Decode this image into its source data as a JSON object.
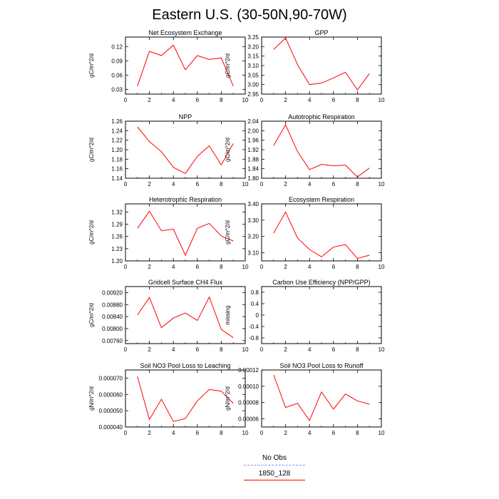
{
  "title": "Eastern U.S. (30-50N,90-70W)",
  "legend": [
    {
      "label": "No Obs",
      "color": "#8888ff",
      "dash": true
    },
    {
      "label": "1850_128",
      "color": "#ff0000",
      "dash": false
    }
  ],
  "chart_data": [
    {
      "type": "line",
      "title": "Net Ecosystem Exchange",
      "ylabel": "gC/m^2/d",
      "xlim": [
        0,
        10
      ],
      "ylim": [
        0.02,
        0.14
      ],
      "xticks": [
        0,
        2,
        4,
        6,
        8,
        10
      ],
      "xticklabels": [
        "0",
        "2",
        "4",
        "6",
        "8",
        "10"
      ],
      "yticks": [
        0.03,
        0.06,
        0.09,
        0.12
      ],
      "yticklabels": [
        "0.03",
        "0.06",
        "0.09",
        "0.12"
      ],
      "series": [
        {
          "name": "1850_128",
          "x": [
            1,
            2,
            3,
            4,
            5,
            6,
            7,
            8,
            9
          ],
          "values": [
            0.037,
            0.11,
            0.101,
            0.123,
            0.071,
            0.101,
            0.093,
            0.096,
            0.037
          ]
        }
      ]
    },
    {
      "type": "line",
      "title": "GPP",
      "ylabel": "gC/m^2/d",
      "xlim": [
        0,
        10
      ],
      "ylim": [
        2.95,
        3.25
      ],
      "xticks": [
        0,
        2,
        4,
        6,
        8,
        10
      ],
      "xticklabels": [
        "0",
        "2",
        "4",
        "6",
        "8",
        "10"
      ],
      "yticks": [
        2.95,
        3.0,
        3.05,
        3.1,
        3.15,
        3.2,
        3.25
      ],
      "yticklabels": [
        "2.95",
        "3.00",
        "3.05",
        "3.10",
        "3.15",
        "3.20",
        "3.25"
      ],
      "series": [
        {
          "name": "1850_128",
          "x": [
            1,
            2,
            3,
            4,
            5,
            6,
            7,
            8,
            9
          ],
          "values": [
            3.185,
            3.245,
            3.105,
            3.0,
            3.008,
            3.035,
            3.065,
            2.972,
            3.058
          ]
        }
      ]
    },
    {
      "type": "line",
      "title": "NPP",
      "ylabel": "gC/m^2/d",
      "xlim": [
        0,
        10
      ],
      "ylim": [
        1.14,
        1.26
      ],
      "xticks": [
        0,
        2,
        4,
        6,
        8,
        10
      ],
      "xticklabels": [
        "0",
        "2",
        "4",
        "6",
        "8",
        "10"
      ],
      "yticks": [
        1.14,
        1.16,
        1.18,
        1.2,
        1.22,
        1.24,
        1.26
      ],
      "yticklabels": [
        "1.14",
        "1.16",
        "1.18",
        "1.20",
        "1.22",
        "1.24",
        "1.26"
      ],
      "series": [
        {
          "name": "1850_128",
          "x": [
            1,
            2,
            3,
            4,
            5,
            6,
            7,
            8,
            9
          ],
          "values": [
            1.248,
            1.217,
            1.196,
            1.163,
            1.15,
            1.186,
            1.208,
            1.168,
            1.213
          ]
        }
      ]
    },
    {
      "type": "line",
      "title": "Autotrophic Respiration",
      "ylabel": "gC/m^2/d",
      "xlim": [
        0,
        10
      ],
      "ylim": [
        1.8,
        2.04
      ],
      "xticks": [
        0,
        2,
        4,
        6,
        8,
        10
      ],
      "xticklabels": [
        "0",
        "2",
        "4",
        "6",
        "8",
        "10"
      ],
      "yticks": [
        1.8,
        1.84,
        1.88,
        1.92,
        1.96,
        2.0,
        2.04
      ],
      "yticklabels": [
        "1.80",
        "1.84",
        "1.88",
        "1.92",
        "1.96",
        "2.00",
        "2.04"
      ],
      "series": [
        {
          "name": "1850_128",
          "x": [
            1,
            2,
            3,
            4,
            5,
            6,
            7,
            8,
            9
          ],
          "values": [
            1.937,
            2.025,
            1.912,
            1.836,
            1.858,
            1.852,
            1.855,
            1.805,
            1.843
          ]
        }
      ]
    },
    {
      "type": "line",
      "title": "Heterotrophic Respiration",
      "ylabel": "gC/m^2/d",
      "xlim": [
        0,
        10
      ],
      "ylim": [
        1.2,
        1.34
      ],
      "xticks": [
        0,
        2,
        4,
        6,
        8,
        10
      ],
      "xticklabels": [
        "0",
        "2",
        "4",
        "6",
        "8",
        "10"
      ],
      "yticks": [
        1.2,
        1.23,
        1.26,
        1.29,
        1.32
      ],
      "yticklabels": [
        "1.20",
        "1.23",
        "1.26",
        "1.29",
        "1.32"
      ],
      "series": [
        {
          "name": "1850_128",
          "x": [
            1,
            2,
            3,
            4,
            5,
            6,
            7,
            8,
            9
          ],
          "values": [
            1.28,
            1.322,
            1.274,
            1.278,
            1.214,
            1.28,
            1.292,
            1.261,
            1.249
          ]
        }
      ]
    },
    {
      "type": "line",
      "title": "Ecosystem Respiration",
      "ylabel": "gC/m^2/d",
      "xlim": [
        0,
        10
      ],
      "ylim": [
        3.05,
        3.4
      ],
      "xticks": [
        0,
        2,
        4,
        6,
        8,
        10
      ],
      "xticklabels": [
        "0",
        "2",
        "4",
        "6",
        "8",
        "10"
      ],
      "yticks": [
        3.1,
        3.2,
        3.3,
        3.4
      ],
      "yticklabels": [
        "3.10",
        "3.20",
        "3.30",
        "3.40"
      ],
      "series": [
        {
          "name": "1850_128",
          "x": [
            1,
            2,
            3,
            4,
            5,
            6,
            7,
            8,
            9
          ],
          "values": [
            3.22,
            3.35,
            3.19,
            3.12,
            3.075,
            3.135,
            3.15,
            3.065,
            3.085
          ]
        }
      ]
    },
    {
      "type": "line",
      "title": "Gridcell Surface CH4 Flux",
      "ylabel": "gC/m^2/d",
      "xlim": [
        0,
        10
      ],
      "ylim": [
        0.0075,
        0.0094
      ],
      "xticks": [
        0,
        2,
        4,
        6,
        8,
        10
      ],
      "xticklabels": [
        "0",
        "2",
        "4",
        "6",
        "8",
        "10"
      ],
      "yticks": [
        0.0076,
        0.008,
        0.0084,
        0.0088,
        0.0092
      ],
      "yticklabels": [
        "0.00760",
        "0.00800",
        "0.00840",
        "0.00880",
        "0.00920"
      ],
      "series": [
        {
          "name": "1850_128",
          "x": [
            1,
            2,
            3,
            4,
            5,
            6,
            7,
            8,
            9
          ],
          "values": [
            0.00845,
            0.00904,
            0.00803,
            0.00835,
            0.00852,
            0.00827,
            0.00905,
            0.00797,
            0.0077
          ]
        }
      ]
    },
    {
      "type": "line",
      "title": "Carbon Use Efficiency (NPP/GPP)",
      "ylabel": "missing",
      "xlim": [
        0,
        10
      ],
      "ylim": [
        -1.0,
        1.0
      ],
      "xticks": [
        0,
        2,
        4,
        6,
        8,
        10
      ],
      "xticklabels": [
        "0",
        "2",
        "4",
        "6",
        "8",
        "10"
      ],
      "yticks": [
        -0.8,
        -0.4,
        0.0,
        0.4,
        0.8
      ],
      "yticklabels": [
        "-0.8",
        "-0.4",
        "0",
        "0.4",
        "0.8"
      ],
      "series": []
    },
    {
      "type": "line",
      "title": "Soil NO3 Pool Loss to Leaching",
      "ylabel": "gN/m^2/d",
      "xlim": [
        0,
        10
      ],
      "ylim": [
        4e-05,
        7.5e-05
      ],
      "xticks": [
        0,
        2,
        4,
        6,
        8,
        10
      ],
      "xticklabels": [
        "0",
        "2",
        "4",
        "6",
        "8",
        "10"
      ],
      "yticks": [
        4e-05,
        5e-05,
        6e-05,
        7e-05
      ],
      "yticklabels": [
        "0.000040",
        "0.000050",
        "0.000060",
        "0.000070"
      ],
      "series": [
        {
          "name": "1850_128",
          "x": [
            1,
            2,
            3,
            4,
            5,
            6,
            7,
            8,
            9
          ],
          "values": [
            7.1e-05,
            4.46e-05,
            5.7e-05,
            4.34e-05,
            4.52e-05,
            5.6e-05,
            6.3e-05,
            6.2e-05,
            5.45e-05
          ]
        }
      ]
    },
    {
      "type": "line",
      "title": "Soil NO3 Pool Loss to Runoff",
      "ylabel": "gN/m^2/d",
      "xlim": [
        0,
        10
      ],
      "ylim": [
        5e-05,
        0.00012
      ],
      "xticks": [
        0,
        2,
        4,
        6,
        8,
        10
      ],
      "xticklabels": [
        "0",
        "2",
        "4",
        "6",
        "8",
        "10"
      ],
      "yticks": [
        6e-05,
        8e-05,
        0.0001,
        0.00012
      ],
      "yticklabels": [
        "0.00006",
        "0.00008",
        "0.00010",
        "0.00012"
      ],
      "series": [
        {
          "name": "1850_128",
          "x": [
            1,
            2,
            3,
            4,
            5,
            6,
            7,
            8,
            9
          ],
          "values": [
            0.000114,
            7.4e-05,
            7.9e-05,
            5.8e-05,
            9.3e-05,
            7.2e-05,
            9.05e-05,
            8.2e-05,
            7.8e-05
          ]
        }
      ]
    }
  ]
}
